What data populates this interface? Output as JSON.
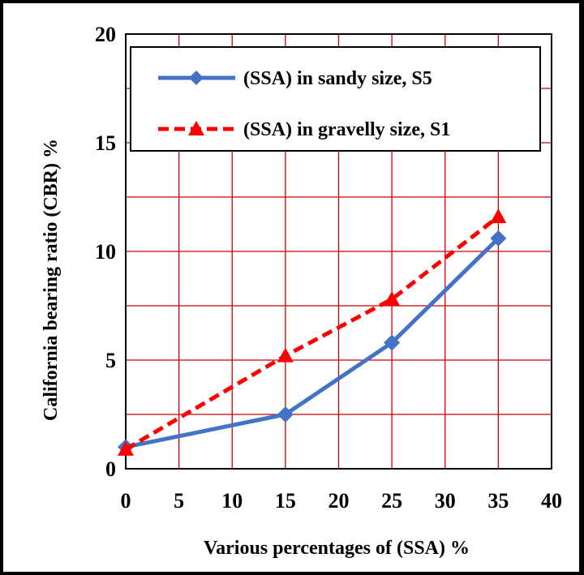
{
  "chart_data": {
    "type": "line",
    "title": "",
    "xlabel": "Various percentages of (SSA) %",
    "ylabel": "California bearing ratio (CBR) %",
    "xlim": [
      0,
      40
    ],
    "ylim": [
      0,
      20
    ],
    "x_ticks": [
      "0",
      "5",
      "10",
      "15",
      "20",
      "25",
      "30",
      "35",
      "40"
    ],
    "y_ticks": [
      "0",
      "5",
      "10",
      "15",
      "20"
    ],
    "grid": true,
    "grid_color": "#cc0000",
    "legend_position": "top-right",
    "series": [
      {
        "name": "(SSA) in sandy size, S5",
        "x": [
          0,
          15,
          25,
          35
        ],
        "y": [
          1.0,
          2.5,
          5.8,
          10.6
        ],
        "color": "#4472c4",
        "line_style": "solid",
        "marker": "diamond"
      },
      {
        "name": "(SSA) in gravelly size, S1",
        "x": [
          0,
          15,
          25,
          35
        ],
        "y": [
          0.9,
          5.2,
          7.8,
          11.6
        ],
        "color": "#ff0000",
        "line_style": "dashed",
        "marker": "triangle"
      }
    ]
  }
}
